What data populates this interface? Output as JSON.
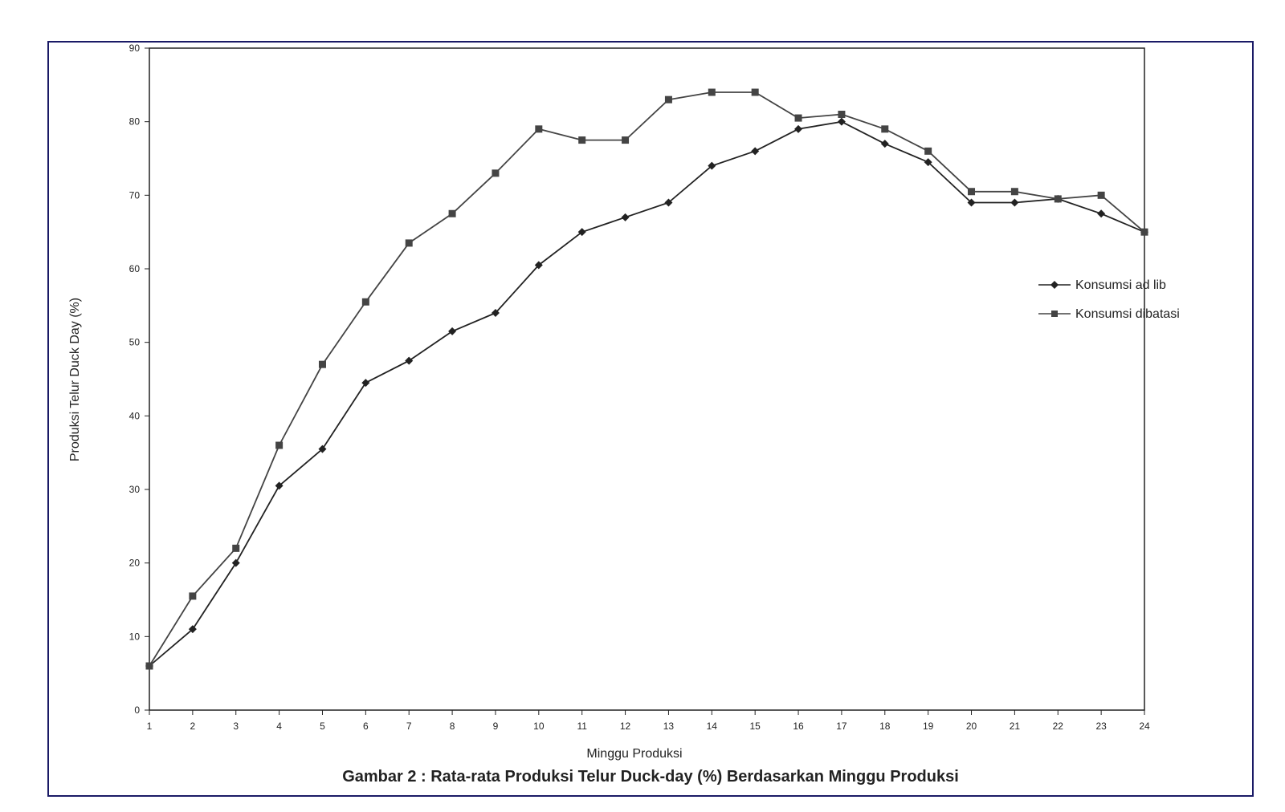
{
  "chart_data": {
    "type": "line",
    "title": "",
    "caption": "Gambar 2 : Rata-rata Produksi Telur Duck-day (%) Berdasarkan Minggu Produksi",
    "xlabel": "Minggu Produksi",
    "ylabel": "Produksi Telur Duck Day (%)",
    "ylim": [
      0,
      90
    ],
    "yticks": [
      0,
      10,
      20,
      30,
      40,
      50,
      60,
      70,
      80,
      90
    ],
    "x": [
      1,
      2,
      3,
      4,
      5,
      6,
      7,
      8,
      9,
      10,
      11,
      12,
      13,
      14,
      15,
      16,
      17,
      18,
      19,
      20,
      21,
      22,
      23,
      24
    ],
    "grid": false,
    "legend_position": "right",
    "series": [
      {
        "name": "Konsumsi ad lib",
        "marker": "diamond",
        "color": "#222222",
        "values": [
          6,
          11,
          20,
          30.5,
          35.5,
          44.5,
          47.5,
          51.5,
          54,
          60.5,
          65,
          67,
          69,
          74,
          76,
          79,
          80,
          77,
          74.5,
          69,
          69,
          69.5,
          67.5,
          65
        ]
      },
      {
        "name": "Konsumsi dibatasi",
        "marker": "square",
        "color": "#444444",
        "values": [
          6,
          15.5,
          22,
          36,
          47,
          55.5,
          63.5,
          67.5,
          73,
          79,
          77.5,
          77.5,
          83,
          84,
          84,
          80.5,
          81,
          79,
          76,
          70.5,
          70.5,
          69.5,
          70,
          65
        ]
      }
    ]
  }
}
